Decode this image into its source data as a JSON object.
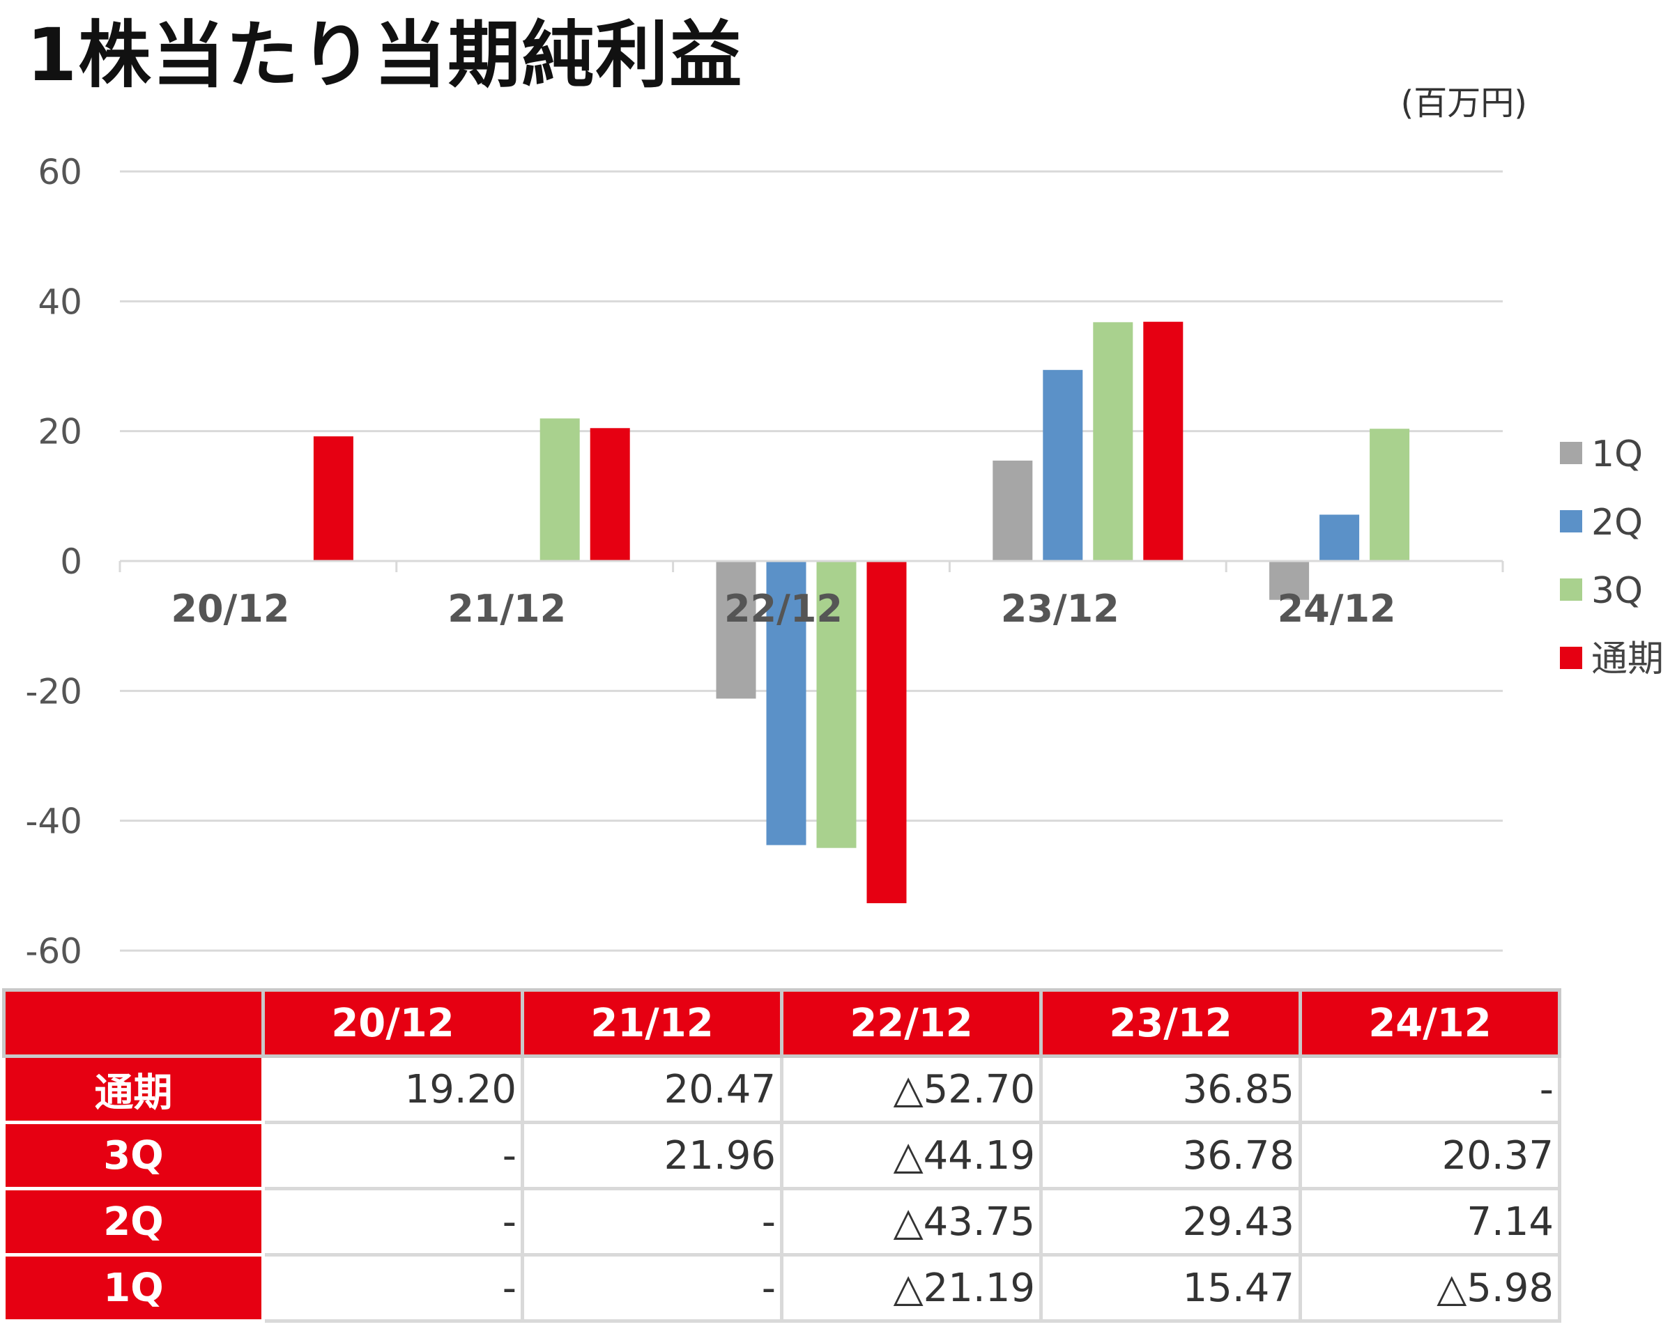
{
  "title": "1株当たり当期純利益",
  "unit": "(百万円)",
  "colors": {
    "1Q": "#a6a6a6",
    "2Q": "#5b91c8",
    "3Q": "#a9d18e",
    "full": "#e60012"
  },
  "chart_data": {
    "type": "bar",
    "categories": [
      "20/12",
      "21/12",
      "22/12",
      "23/12",
      "24/12"
    ],
    "series": [
      {
        "name": "1Q",
        "values": [
          null,
          null,
          -21.19,
          15.47,
          -5.98
        ]
      },
      {
        "name": "2Q",
        "values": [
          null,
          null,
          -43.75,
          29.43,
          7.14
        ]
      },
      {
        "name": "3Q",
        "values": [
          null,
          21.96,
          -44.19,
          36.78,
          20.37
        ]
      },
      {
        "name": "通期",
        "values": [
          19.2,
          20.47,
          -52.7,
          36.85,
          null
        ]
      }
    ],
    "ylim": [
      -60,
      60
    ],
    "yticks": [
      "60",
      "40",
      "20",
      "0",
      "-20",
      "-40",
      "-60"
    ],
    "grid": true,
    "legend": "right"
  },
  "table": {
    "headers": [
      "20/12",
      "21/12",
      "22/12",
      "23/12",
      "24/12"
    ],
    "rows": [
      {
        "label": "通期",
        "cells": [
          "19.20",
          "20.47",
          "△52.70",
          "36.85",
          "-"
        ]
      },
      {
        "label": "3Q",
        "cells": [
          "-",
          "21.96",
          "△44.19",
          "36.78",
          "20.37"
        ]
      },
      {
        "label": "2Q",
        "cells": [
          "-",
          "-",
          "△43.75",
          "29.43",
          "7.14"
        ]
      },
      {
        "label": "1Q",
        "cells": [
          "-",
          "-",
          "△21.19",
          "15.47",
          "△5.98"
        ]
      }
    ]
  }
}
